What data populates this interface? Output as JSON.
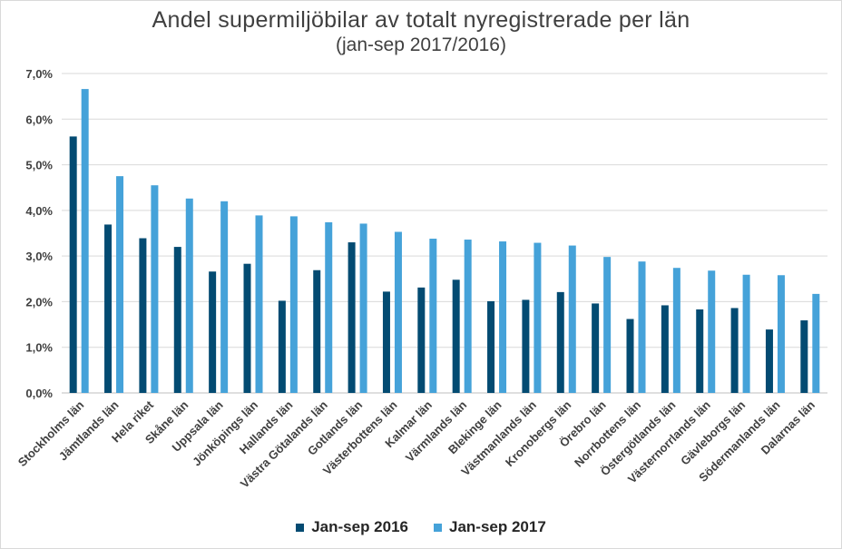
{
  "chart_data": {
    "type": "bar",
    "title": "Andel supermiljöbilar av totalt nyregistrerade per län",
    "subtitle": "(jan-sep 2017/2016)",
    "categories": [
      "Stockholms län",
      "Jämtlands län",
      "Hela riket",
      "Skåne län",
      "Uppsala län",
      "Jönköpings län",
      "Hallands län",
      "Västra Götalands län",
      "Gotlands län",
      "Västerbottens län",
      "Kalmar län",
      "Värmlands län",
      "Blekinge län",
      "Västmanlands län",
      "Kronobergs län",
      "Örebro län",
      "Norrbottens län",
      "Östergötlands län",
      "Västernorrlands län",
      "Gävleborgs län",
      "Södermanlands län",
      "Dalarnas län"
    ],
    "series": [
      {
        "name": "Jan-sep 2016",
        "color": "#034b72",
        "values": [
          5.62,
          3.69,
          3.39,
          3.2,
          2.66,
          2.83,
          2.02,
          2.69,
          3.3,
          2.22,
          2.31,
          2.48,
          2.01,
          2.04,
          2.21,
          1.96,
          1.62,
          1.92,
          1.83,
          1.86,
          1.39,
          1.59
        ]
      },
      {
        "name": "Jan-sep 2017",
        "color": "#45a2d9",
        "values": [
          6.66,
          4.75,
          4.55,
          4.26,
          4.2,
          3.89,
          3.87,
          3.74,
          3.71,
          3.53,
          3.38,
          3.36,
          3.32,
          3.29,
          3.23,
          2.98,
          2.88,
          2.74,
          2.68,
          2.59,
          2.58,
          2.17
        ]
      }
    ],
    "yticks": [
      "0,0%",
      "1,0%",
      "2,0%",
      "3,0%",
      "4,0%",
      "5,0%",
      "6,0%",
      "7,0%"
    ],
    "ylim": [
      0,
      7
    ],
    "grid": true,
    "legend": "bottom"
  }
}
